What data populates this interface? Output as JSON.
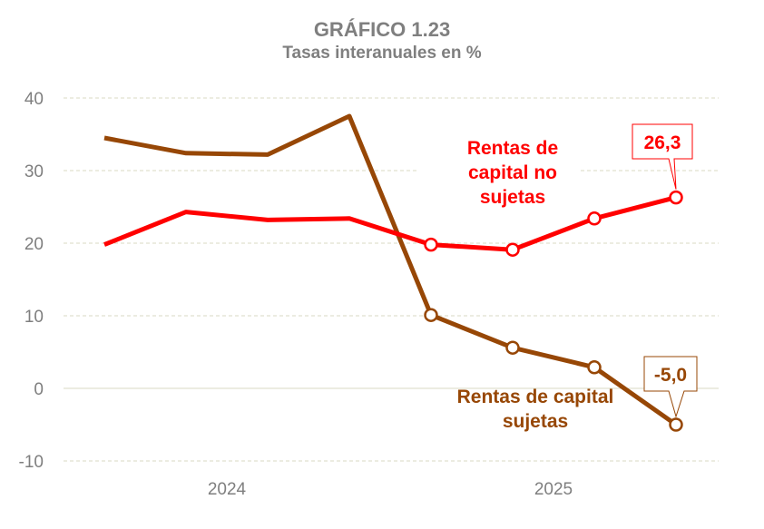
{
  "colors": {
    "red": "#ff0000",
    "brown": "#974706",
    "grid": "#d9d9c3",
    "text": "#7f7f7f"
  },
  "chart_data": {
    "type": "line",
    "title": "GRÁFICO 1.23",
    "subtitle": "Tasas interanuales en %",
    "xlabel": "",
    "ylabel": "",
    "ylim": [
      -10,
      40
    ],
    "yticks": [
      "-10",
      "0",
      "10",
      "20",
      "30",
      "40"
    ],
    "xtick_labels": [
      {
        "label": "2024",
        "index": 2
      },
      {
        "label": "2025",
        "index": 6
      }
    ],
    "grid": true,
    "series": [
      {
        "name": "Rentas de capital no sujetas",
        "color": "#ff0000",
        "values": [
          19.8,
          24.3,
          23.2,
          23.4,
          19.8,
          19.1,
          23.4,
          26.3
        ],
        "marker_from_index": 4,
        "last_label": "26,3"
      },
      {
        "name": "Rentas de capital sujetas",
        "color": "#974706",
        "values": [
          34.5,
          32.4,
          32.2,
          37.5,
          10.1,
          5.6,
          2.9,
          -5.0
        ],
        "marker_from_index": 4,
        "last_label": "-5,0"
      }
    ]
  }
}
